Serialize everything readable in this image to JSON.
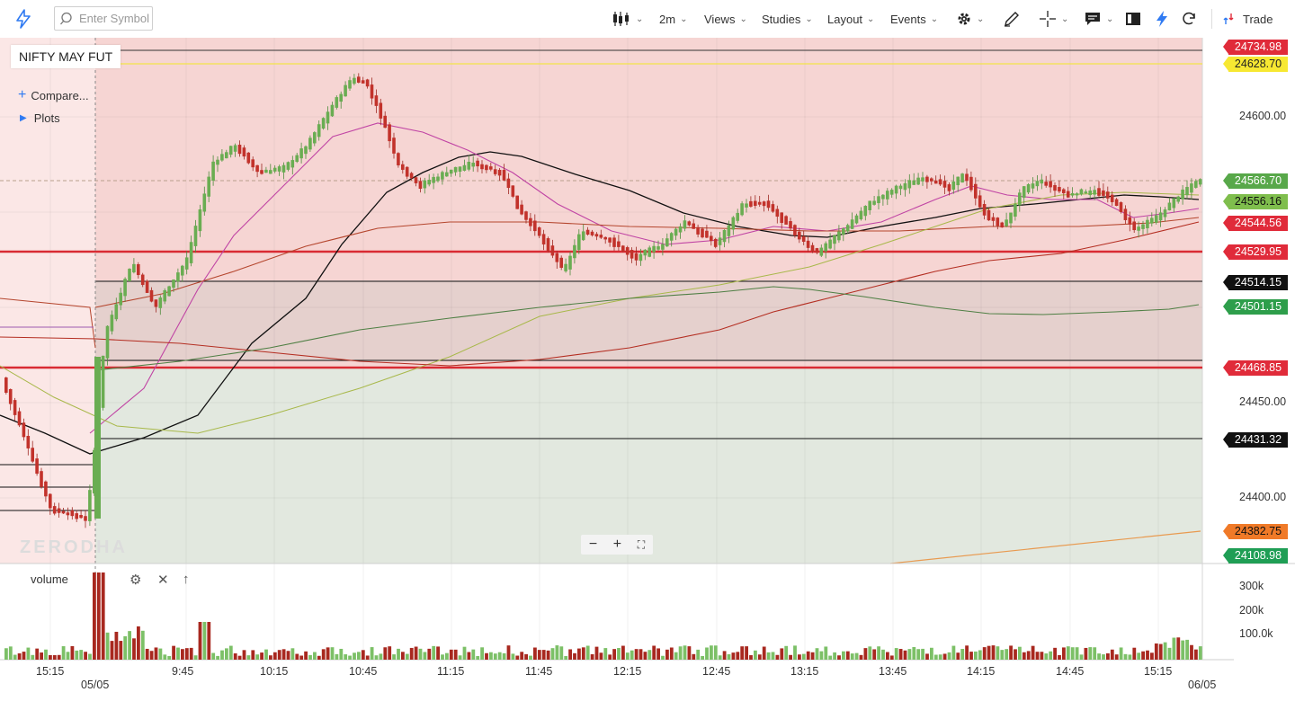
{
  "toolbar": {
    "search_placeholder": "Enter Symbol",
    "interval": "2m",
    "views": "Views",
    "studies": "Studies",
    "layout": "Layout",
    "events": "Events",
    "trade": "Trade"
  },
  "chart": {
    "symbol": "NIFTY MAY FUT",
    "compare": "Compare...",
    "plots": "Plots",
    "watermark": "ZERODHA",
    "volume_label": "volume"
  },
  "price_axis": [
    "24600.00",
    "24450.00",
    "24400.00"
  ],
  "price_badges": [
    {
      "label": "24734.98",
      "bg": "#e02b3a",
      "fg": "#ffffff"
    },
    {
      "label": "24628.70",
      "bg": "#f7e832",
      "fg": "#222222"
    },
    {
      "label": "24566.70",
      "bg": "#58a84a",
      "fg": "#ffffff"
    },
    {
      "label": "24556.16",
      "bg": "#7fbe4d",
      "fg": "#111111"
    },
    {
      "label": "24544.56",
      "bg": "#e02b3a",
      "fg": "#ffffff"
    },
    {
      "label": "24529.95",
      "bg": "#e02b3a",
      "fg": "#ffffff"
    },
    {
      "label": "24514.15",
      "bg": "#111111",
      "fg": "#ffffff"
    },
    {
      "label": "24501.15",
      "bg": "#2e9e4b",
      "fg": "#ffffff"
    },
    {
      "label": "24468.85",
      "bg": "#e02b3a",
      "fg": "#ffffff"
    },
    {
      "label": "24431.32",
      "bg": "#111111",
      "fg": "#ffffff"
    },
    {
      "label": "24382.75",
      "bg": "#f07a28",
      "fg": "#111111"
    },
    {
      "label": "24108.98",
      "bg": "#1f9e55",
      "fg": "#ffffff"
    }
  ],
  "volume_axis": [
    "300k",
    "200k",
    "100.0k"
  ],
  "time_axis": [
    "15:15",
    "9:45",
    "10:15",
    "10:45",
    "11:15",
    "11:45",
    "12:15",
    "12:45",
    "13:15",
    "13:45",
    "14:15",
    "14:45",
    "15:15"
  ],
  "date_labels": [
    "05/05",
    "06/05"
  ],
  "colors": {
    "up": "#6aad52",
    "down": "#c2322b",
    "resistance_zone": "#f6d5d3",
    "support_zone": "#e2e8df",
    "accent": "#2f7af2"
  }
}
